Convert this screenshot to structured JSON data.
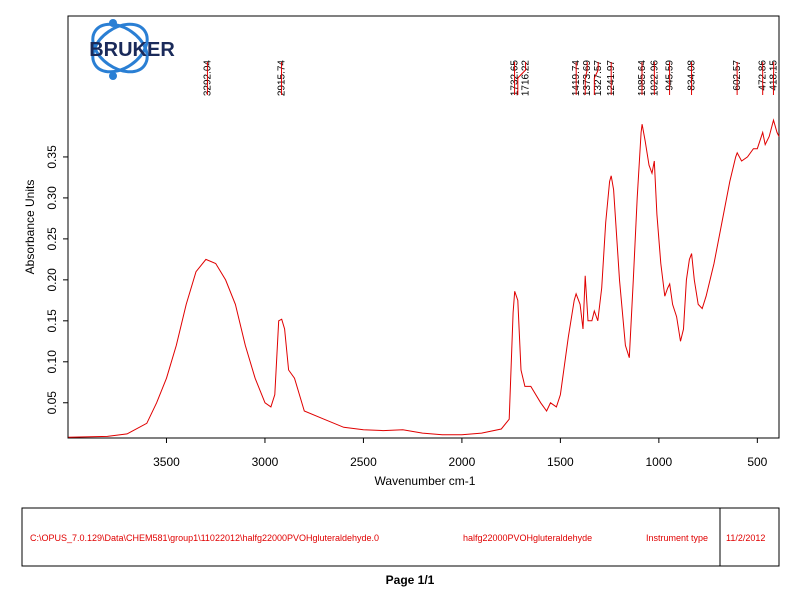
{
  "chart_data": {
    "type": "line",
    "logo": "BRUKER",
    "x_label": "Wavenumber cm-1",
    "y_label": "Absorbance Units",
    "color": "#e00000",
    "xlim": [
      4000,
      390
    ],
    "ylim": [
      0.007,
      0.522
    ],
    "xticks": [
      3500,
      3000,
      2500,
      2000,
      1500,
      1000,
      500
    ],
    "yticks": [
      0.05,
      {
        "value": 0.1,
        "label": "0.10"
      },
      0.15,
      {
        "value": 0.2,
        "label": "0.20"
      },
      0.25,
      {
        "value": 0.3,
        "label": "0.30"
      },
      0.35
    ],
    "peaks": [
      3292.04,
      2915.74,
      1732.65,
      1716.22,
      1419.74,
      1373.69,
      1327.57,
      1241.97,
      1085.64,
      1022.96,
      945.59,
      834.08,
      602.57,
      472.86,
      418.15
    ],
    "x": [
      3998,
      3800,
      3700,
      3600,
      3550,
      3500,
      3450,
      3400,
      3350,
      3300,
      3250,
      3200,
      3150,
      3100,
      3050,
      3000,
      2970,
      2950,
      2930,
      2915,
      2900,
      2880,
      2850,
      2800,
      2700,
      2600,
      2500,
      2400,
      2300,
      2200,
      2100,
      2000,
      1900,
      1800,
      1760,
      1740,
      1732,
      1716,
      1700,
      1680,
      1650,
      1600,
      1570,
      1550,
      1520,
      1500,
      1460,
      1430,
      1420,
      1400,
      1385,
      1374,
      1360,
      1340,
      1328,
      1310,
      1290,
      1270,
      1250,
      1242,
      1230,
      1200,
      1170,
      1150,
      1130,
      1110,
      1090,
      1085,
      1070,
      1050,
      1035,
      1023,
      1010,
      990,
      970,
      955,
      945,
      930,
      910,
      890,
      875,
      860,
      845,
      834,
      820,
      800,
      780,
      760,
      720,
      680,
      640,
      610,
      602,
      580,
      550,
      520,
      500,
      473,
      460,
      440,
      418,
      400,
      390
    ],
    "values": [
      0.008,
      0.009,
      0.012,
      0.025,
      0.05,
      0.08,
      0.12,
      0.17,
      0.21,
      0.225,
      0.22,
      0.2,
      0.17,
      0.12,
      0.08,
      0.05,
      0.045,
      0.06,
      0.15,
      0.152,
      0.14,
      0.09,
      0.08,
      0.04,
      0.03,
      0.02,
      0.017,
      0.016,
      0.017,
      0.013,
      0.011,
      0.011,
      0.013,
      0.018,
      0.03,
      0.16,
      0.186,
      0.175,
      0.09,
      0.07,
      0.07,
      0.05,
      0.04,
      0.05,
      0.045,
      0.06,
      0.13,
      0.175,
      0.183,
      0.17,
      0.14,
      0.205,
      0.15,
      0.15,
      0.162,
      0.15,
      0.19,
      0.27,
      0.32,
      0.327,
      0.31,
      0.2,
      0.12,
      0.105,
      0.2,
      0.3,
      0.38,
      0.39,
      0.37,
      0.34,
      0.33,
      0.345,
      0.28,
      0.22,
      0.18,
      0.19,
      0.195,
      0.17,
      0.155,
      0.125,
      0.14,
      0.2,
      0.225,
      0.232,
      0.2,
      0.17,
      0.165,
      0.18,
      0.22,
      0.27,
      0.32,
      0.35,
      0.355,
      0.345,
      0.35,
      0.36,
      0.36,
      0.38,
      0.365,
      0.375,
      0.395,
      0.38,
      0.375
    ],
    "footer": {
      "path": "C:\\OPUS_7.0.129\\Data\\CHEM581\\group1\\11022012\\halfg22000PVOHgluteraldehyde.0",
      "sample": "halfg22000PVOHgluteraldehyde",
      "instrument": "Instrument type",
      "date": "11/2/2012",
      "page": "Page 1/1"
    }
  }
}
